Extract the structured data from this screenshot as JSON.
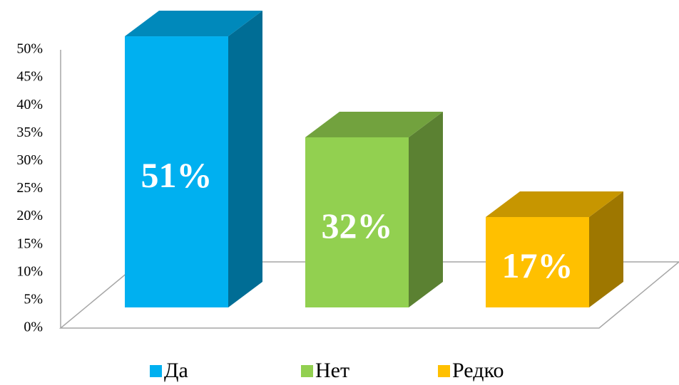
{
  "chart_data": {
    "type": "bar3d",
    "categories": [
      "Да",
      "Нет",
      "Редко"
    ],
    "values": [
      51,
      32,
      17
    ],
    "value_labels": [
      "51%",
      "32%",
      "17%"
    ],
    "colors": [
      "#00b0f0",
      "#92d050",
      "#ffc000"
    ],
    "ylim": [
      0,
      50
    ],
    "yticks": [
      {
        "value": 0,
        "label": "0%"
      },
      {
        "value": 5,
        "label": "5%"
      },
      {
        "value": 10,
        "label": "10%"
      },
      {
        "value": 15,
        "label": "15%"
      },
      {
        "value": 20,
        "label": "20%"
      },
      {
        "value": 25,
        "label": "25%"
      },
      {
        "value": 30,
        "label": "30%"
      },
      {
        "value": 35,
        "label": "35%"
      },
      {
        "value": 40,
        "label": "40%"
      },
      {
        "value": 45,
        "label": "45%"
      },
      {
        "value": 50,
        "label": "50%"
      }
    ],
    "legend": "bottom"
  }
}
